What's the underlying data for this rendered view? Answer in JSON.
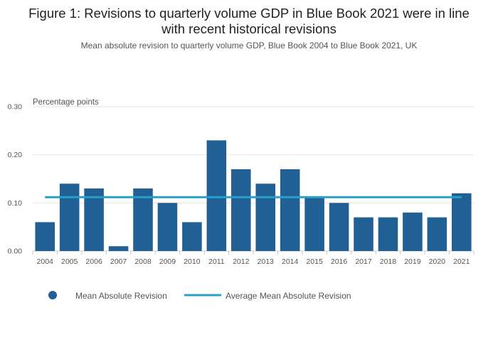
{
  "title": "Figure 1: Revisions to quarterly volume GDP in Blue Book 2021 were in line\nwith recent historical revisions",
  "subtitle": "Mean absolute revision to quarterly volume GDP, Blue Book 2004 to Blue Book 2021, UK",
  "colors": {
    "bar": "#206095",
    "average_line": "#27a0cc",
    "grid": "#e6e6e6",
    "axis": "#cccccc"
  },
  "chart_data": {
    "type": "bar",
    "title": "Figure 1: Revisions to quarterly volume GDP in Blue Book 2021 were in line with recent historical revisions",
    "subtitle": "Mean absolute revision to quarterly volume GDP, Blue Book 2004 to Blue Book 2021, UK",
    "ylabel": "Percentage points",
    "xlabel": "",
    "ylim": [
      0,
      0.3
    ],
    "yticks": [
      "0.00",
      "0.10",
      "0.20",
      "0.30"
    ],
    "ytick_values": [
      0,
      0.1,
      0.2,
      0.3
    ],
    "grid": true,
    "legend_position": "bottom-left",
    "categories": [
      "2004",
      "2005",
      "2006",
      "2007",
      "2008",
      "2009",
      "2010",
      "2011",
      "2012",
      "2013",
      "2014",
      "2015",
      "2016",
      "2017",
      "2018",
      "2019",
      "2020",
      "2021"
    ],
    "series": [
      {
        "name": "Mean Absolute Revision",
        "type": "bar",
        "values": [
          0.06,
          0.14,
          0.13,
          0.01,
          0.13,
          0.1,
          0.06,
          0.23,
          0.17,
          0.14,
          0.17,
          0.11,
          0.1,
          0.07,
          0.07,
          0.08,
          0.07,
          0.12
        ]
      },
      {
        "name": "Average Mean Absolute Revision",
        "type": "line",
        "value": 0.112
      }
    ]
  }
}
